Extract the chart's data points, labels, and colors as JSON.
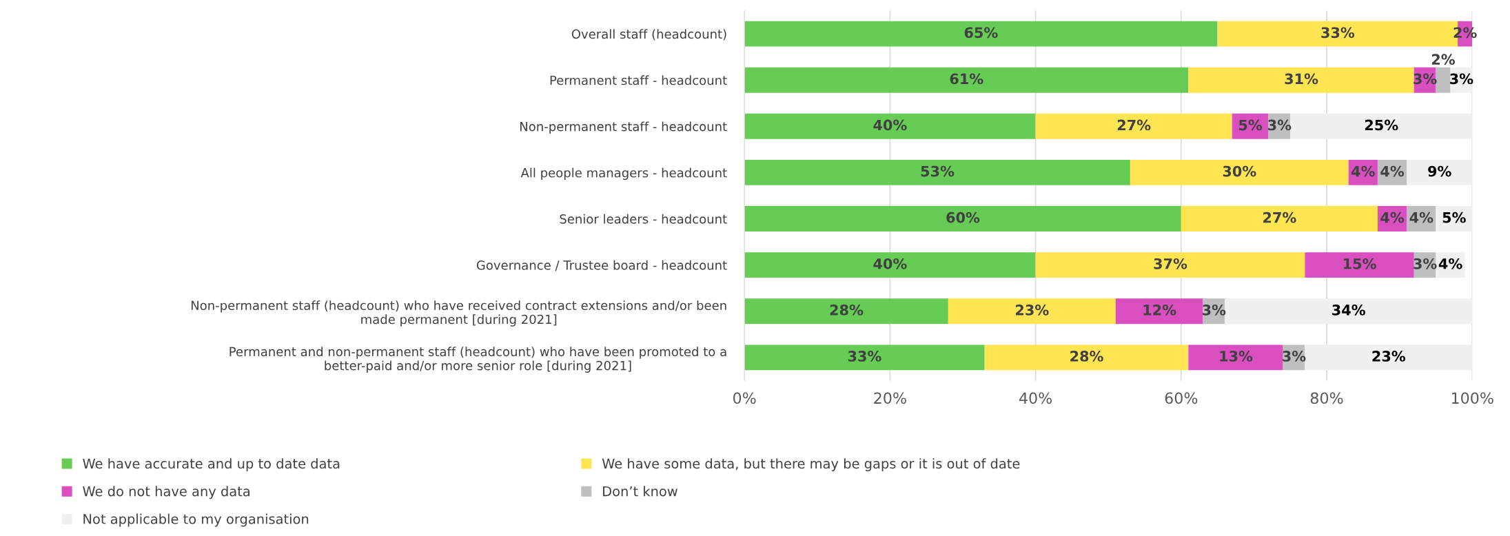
{
  "chart_data": {
    "type": "bar",
    "orientation": "horizontal",
    "stacked": true,
    "categories": [
      "Overall staff (headcount)",
      "Permanent staff - headcount",
      "Non-permanent staff - headcount",
      "All people managers - headcount",
      "Senior leaders - headcount",
      "Governance / Trustee board - headcount",
      "Non-permanent staff (headcount) who have received contract extensions and/or been made permanent [during 2021]",
      "Permanent and non-permanent staff (headcount) who have been promoted to a better-paid and/or more senior role [during 2021]"
    ],
    "series": [
      {
        "name": "We have accurate and up to date data",
        "color": "#66cc55",
        "values": [
          65,
          61,
          40,
          53,
          60,
          40,
          28,
          33
        ],
        "value_labels": [
          "65%",
          "61%",
          "40%",
          "53%",
          "60%",
          "40%",
          "28%",
          "33%"
        ]
      },
      {
        "name": "We have some data, but there may be gaps or it is out of date",
        "color": "#ffe552",
        "values": [
          33,
          31,
          27,
          30,
          27,
          37,
          23,
          28
        ],
        "value_labels": [
          "33%",
          "31%",
          "27%",
          "30%",
          "27%",
          "37%",
          "23%",
          "28%"
        ]
      },
      {
        "name": "We do not have any data",
        "color": "#d94fbf",
        "values": [
          2,
          3,
          5,
          4,
          4,
          15,
          12,
          13
        ],
        "value_labels": [
          "2%",
          "3%",
          "5%",
          "4%",
          "4%",
          "15%",
          "12%",
          "13%"
        ]
      },
      {
        "name": "Don’t know",
        "color": "#bfbfbf",
        "values": [
          null,
          2,
          3,
          4,
          4,
          3,
          3,
          3
        ],
        "value_labels": [
          null,
          "2%",
          "3%",
          "4%",
          "4%",
          "3%",
          "3%",
          "3%"
        ]
      },
      {
        "name": "Not applicable to my organisation",
        "color": "#f0f0f0",
        "values": [
          null,
          3,
          25,
          9,
          5,
          4,
          34,
          23
        ],
        "value_labels": [
          null,
          "3%",
          "25%",
          "9%",
          "5%",
          "4%",
          "34%",
          "23%"
        ]
      }
    ],
    "xlim": [
      0,
      100
    ],
    "xticks": [
      {
        "value": 0,
        "label": "0%"
      },
      {
        "value": 20,
        "label": "20%"
      },
      {
        "value": 40,
        "label": "40%"
      },
      {
        "value": 60,
        "label": "60%"
      },
      {
        "value": 80,
        "label": "80%"
      },
      {
        "value": 100,
        "label": "100%"
      }
    ],
    "grid": "x",
    "legend": "bottom"
  }
}
